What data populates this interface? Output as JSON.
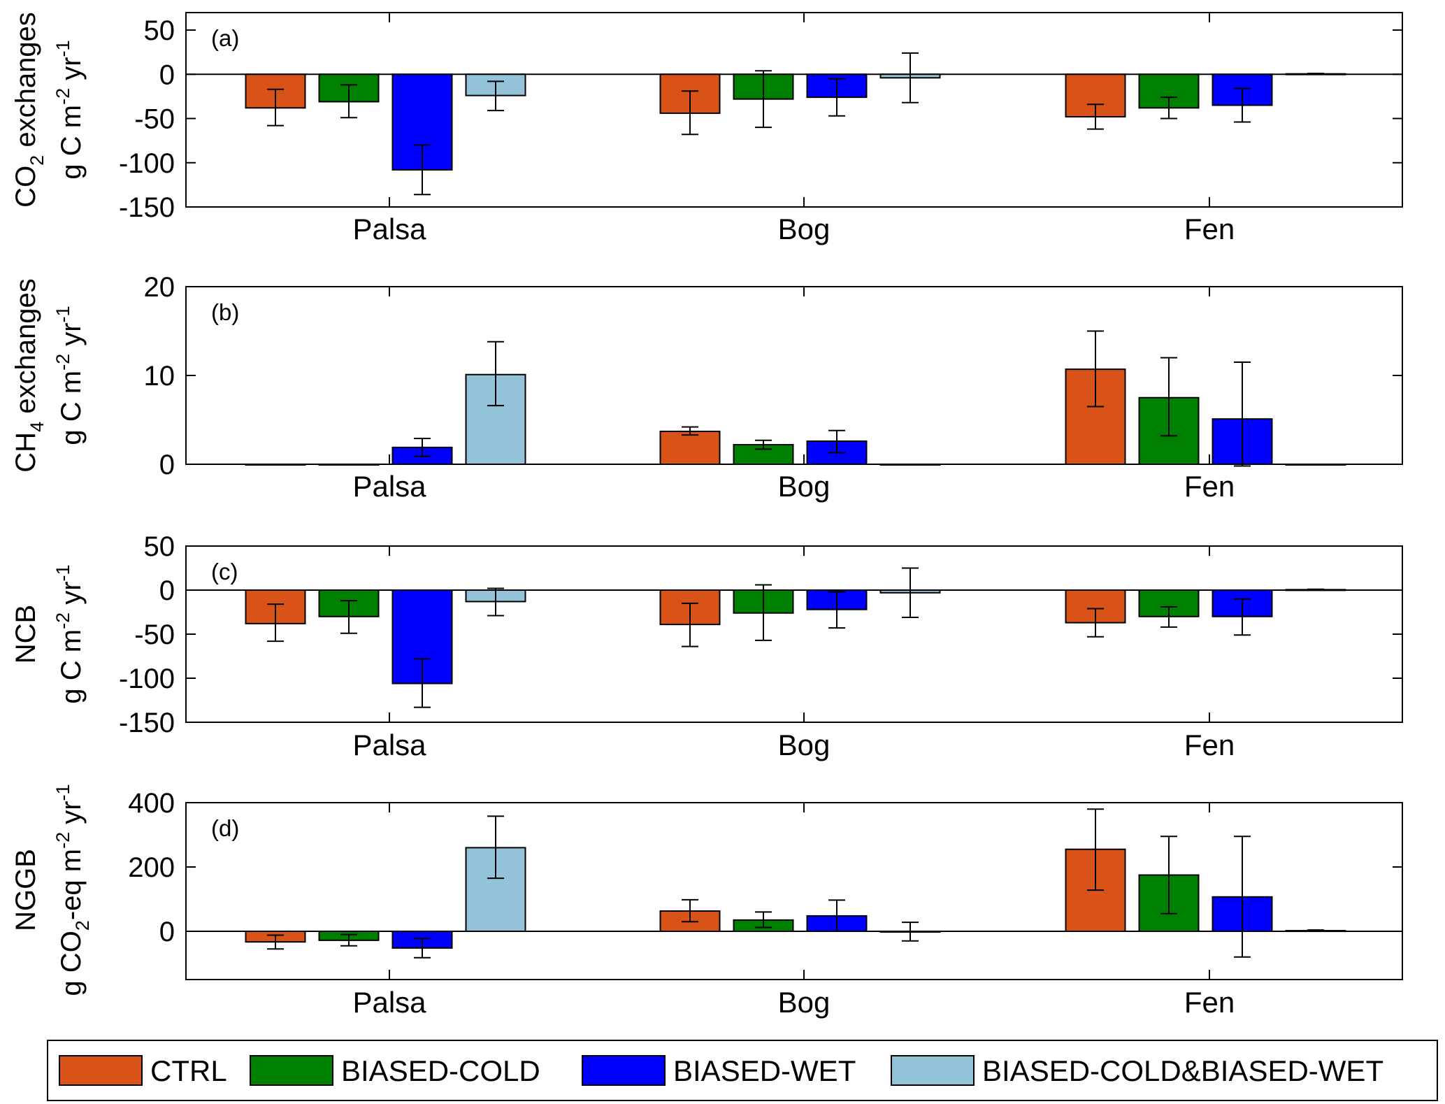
{
  "chart_data": [
    {
      "type": "bar",
      "panel_label": "(a)",
      "categories": [
        "Palsa",
        "Bog",
        "Fen"
      ],
      "ylabel_line1": {
        "pre": "CO",
        "sub": "2",
        "post": " exchanges"
      },
      "ylabel_line2": {
        "pre": "g C m",
        "sup1": "-2",
        "mid": " yr",
        "sup2": "-1"
      },
      "ylim": [
        -150,
        50
      ],
      "yticks": [
        -150,
        -100,
        -50,
        0,
        50
      ],
      "grid": false,
      "series": [
        {
          "name": "CTRL",
          "values": [
            -38,
            -44,
            -48
          ],
          "err_low": [
            -58,
            -68,
            -62
          ],
          "err_high": [
            -17,
            -19,
            -34
          ]
        },
        {
          "name": "BIASED-COLD",
          "values": [
            -31,
            -28,
            -38
          ],
          "err_low": [
            -49,
            -60,
            -50
          ],
          "err_high": [
            -12,
            4,
            -26
          ]
        },
        {
          "name": "BIASED-WET",
          "values": [
            -108,
            -26,
            -35
          ],
          "err_low": [
            -136,
            -47,
            -54
          ],
          "err_high": [
            -80,
            -5,
            -16
          ]
        },
        {
          "name": "BIASED-COLD&BIASED-WET",
          "values": [
            -24,
            -4,
            0.5
          ],
          "err_low": [
            -41,
            -32,
            0
          ],
          "err_high": [
            -8,
            24,
            1
          ]
        }
      ]
    },
    {
      "type": "bar",
      "panel_label": "(b)",
      "categories": [
        "Palsa",
        "Bog",
        "Fen"
      ],
      "ylabel_line1": {
        "pre": "CH",
        "sub": "4",
        "post": " exchanges"
      },
      "ylabel_line2": {
        "pre": "g C m",
        "sup1": "-2",
        "mid": " yr",
        "sup2": "-1"
      },
      "ylim": [
        0,
        20
      ],
      "yticks": [
        0,
        10,
        20
      ],
      "grid": false,
      "series": [
        {
          "name": "CTRL",
          "values": [
            0,
            3.7,
            10.7
          ],
          "err_low": [
            0,
            3.3,
            6.5
          ],
          "err_high": [
            0,
            4.2,
            15
          ]
        },
        {
          "name": "BIASED-COLD",
          "values": [
            0,
            2.2,
            7.5
          ],
          "err_low": [
            0,
            1.7,
            3.2
          ],
          "err_high": [
            0,
            2.7,
            12
          ]
        },
        {
          "name": "BIASED-WET",
          "values": [
            1.9,
            2.6,
            5.1
          ],
          "err_low": [
            0.9,
            1.3,
            -0.2
          ],
          "err_high": [
            2.9,
            3.8,
            11.5
          ]
        },
        {
          "name": "BIASED-COLD&BIASED-WET",
          "values": [
            10.1,
            0,
            0
          ],
          "err_low": [
            6.6,
            0,
            0
          ],
          "err_high": [
            13.8,
            0,
            0
          ]
        }
      ]
    },
    {
      "type": "bar",
      "panel_label": "(c)",
      "categories": [
        "Palsa",
        "Bog",
        "Fen"
      ],
      "ylabel_line1": {
        "pre": "NCB",
        "sub": "",
        "post": ""
      },
      "ylabel_line2": {
        "pre": "g C m",
        "sup1": "-2",
        "mid": " yr",
        "sup2": "-1"
      },
      "ylim": [
        -150,
        50
      ],
      "yticks": [
        -150,
        -100,
        -50,
        0,
        50
      ],
      "grid": false,
      "series": [
        {
          "name": "CTRL",
          "values": [
            -38,
            -39,
            -37
          ],
          "err_low": [
            -58,
            -64,
            -53
          ],
          "err_high": [
            -16,
            -15,
            -21
          ]
        },
        {
          "name": "BIASED-COLD",
          "values": [
            -30,
            -26,
            -30
          ],
          "err_low": [
            -49,
            -57,
            -42
          ],
          "err_high": [
            -12,
            6,
            -19
          ]
        },
        {
          "name": "BIASED-WET",
          "values": [
            -106,
            -22,
            -30
          ],
          "err_low": [
            -133,
            -43,
            -51
          ],
          "err_high": [
            -78,
            -2,
            -10
          ]
        },
        {
          "name": "BIASED-COLD&BIASED-WET",
          "values": [
            -13,
            -3,
            0.5
          ],
          "err_low": [
            -29,
            -31,
            0
          ],
          "err_high": [
            2,
            25,
            1
          ]
        }
      ]
    },
    {
      "type": "bar",
      "panel_label": "(d)",
      "categories": [
        "Palsa",
        "Bog",
        "Fen"
      ],
      "ylabel_line1": {
        "pre": "NGGB",
        "sub": "",
        "post": ""
      },
      "ylabel_line2": {
        "pre": "g CO",
        "sub": "2",
        "mid0": "-eq m",
        "sup1": "-2",
        "mid": " yr",
        "sup2": "-1"
      },
      "ylim": [
        -75,
        400
      ],
      "yticks": [
        0,
        200,
        400
      ],
      "grid": false,
      "series": [
        {
          "name": "CTRL",
          "values": [
            -33,
            63,
            255
          ],
          "err_low": [
            -55,
            30,
            128
          ],
          "err_high": [
            -12,
            98,
            380
          ]
        },
        {
          "name": "BIASED-COLD",
          "values": [
            -28,
            35,
            175
          ],
          "err_low": [
            -45,
            12,
            55
          ],
          "err_high": [
            -10,
            60,
            295
          ]
        },
        {
          "name": "BIASED-WET",
          "values": [
            -52,
            48,
            107
          ],
          "err_low": [
            -82,
            0,
            -80
          ],
          "err_high": [
            -22,
            97,
            295
          ]
        },
        {
          "name": "BIASED-COLD&BIASED-WET",
          "values": [
            260,
            -2,
            2
          ],
          "err_low": [
            165,
            -30,
            0
          ],
          "err_high": [
            358,
            28,
            4
          ]
        }
      ]
    }
  ],
  "legend": {
    "placement": "bottom",
    "entries": [
      {
        "label": "CTRL",
        "color": "#D95319"
      },
      {
        "label": "BIASED-COLD",
        "color": "#008000"
      },
      {
        "label": "BIASED-WET",
        "color": "#0000FF"
      },
      {
        "label": "BIASED-COLD&BIASED-WET",
        "color": "#92C3D8"
      }
    ]
  },
  "colors": {
    "axis": "#000000",
    "background": "#FFFFFF"
  }
}
